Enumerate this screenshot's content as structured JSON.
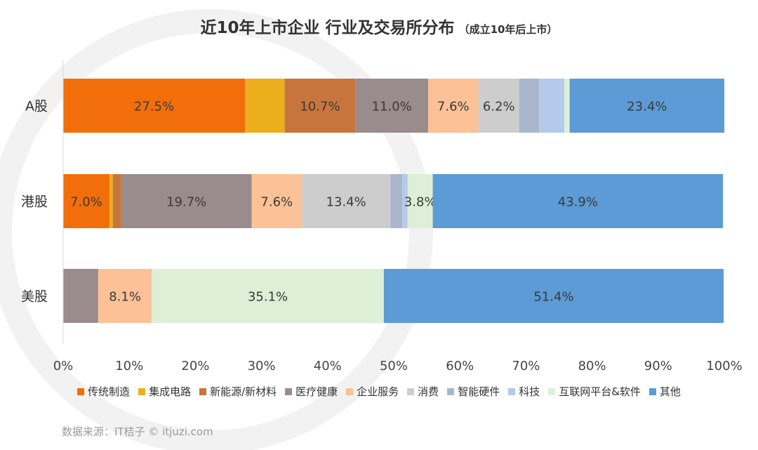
{
  "title": "近10年上市企业 行业及交易所分布",
  "subtitle": "（成立10年后上市）",
  "source": "数据来源：IT桔子 © itjuzi.com",
  "chart_data": {
    "type": "bar",
    "orientation": "horizontal",
    "stacked": true,
    "categories": [
      "A股",
      "港股",
      "美股"
    ],
    "xlim": [
      0,
      100
    ],
    "x_ticks": [
      "0%",
      "10%",
      "20%",
      "30%",
      "40%",
      "50%",
      "60%",
      "70%",
      "80%",
      "90%",
      "100%"
    ],
    "grid": false,
    "legend_position": "bottom",
    "series": [
      {
        "name": "传统制造",
        "color": "#F26E0B",
        "values": [
          27.5,
          7.0,
          0.0
        ],
        "labels": [
          "27.5%",
          "7.0%",
          ""
        ]
      },
      {
        "name": "集成电路",
        "color": "#EDAE1E",
        "values": [
          6.0,
          0.5,
          0.0
        ],
        "labels": [
          "",
          "",
          ""
        ]
      },
      {
        "name": "新能源/新材料",
        "color": "#C8753D",
        "values": [
          10.7,
          1.3,
          0.0
        ],
        "labels": [
          "10.7%",
          "",
          ""
        ]
      },
      {
        "name": "医疗健康",
        "color": "#9A8C8C",
        "values": [
          11.0,
          19.7,
          5.3
        ],
        "labels": [
          "11.0%",
          "19.7%",
          ""
        ]
      },
      {
        "name": "企业服务",
        "color": "#FCC196",
        "values": [
          7.6,
          7.6,
          8.1
        ],
        "labels": [
          "7.6%",
          "7.6%",
          "8.1%"
        ]
      },
      {
        "name": "消费",
        "color": "#CDCDCD",
        "values": [
          6.2,
          13.4,
          0.0
        ],
        "labels": [
          "6.2%",
          "13.4%",
          ""
        ]
      },
      {
        "name": "智能硬件",
        "color": "#A9B6CB",
        "values": [
          3.0,
          1.8,
          0.0
        ],
        "labels": [
          "",
          "",
          ""
        ]
      },
      {
        "name": "科技",
        "color": "#B4C9EB",
        "values": [
          3.8,
          0.8,
          0.0
        ],
        "labels": [
          "",
          "",
          ""
        ]
      },
      {
        "name": "互联网平台&软件",
        "color": "#DDEFD6",
        "values": [
          0.8,
          3.8,
          35.1
        ],
        "labels": [
          "",
          "3.8%",
          "35.1%"
        ]
      },
      {
        "name": "其他",
        "color": "#5C9BD5",
        "values": [
          23.4,
          43.9,
          51.4
        ],
        "labels": [
          "23.4%",
          "43.9%",
          "51.4%"
        ]
      }
    ]
  }
}
